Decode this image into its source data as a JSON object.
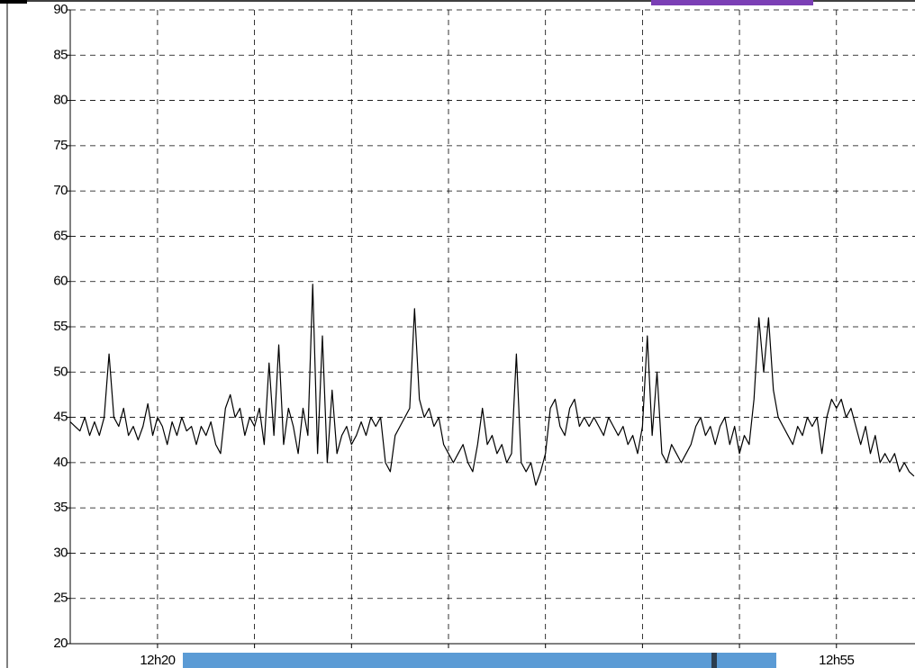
{
  "chart_data": {
    "type": "line",
    "x": [
      15.5,
      15.75,
      16,
      16.25,
      16.5,
      16.75,
      17,
      17.25,
      17.5,
      17.75,
      18,
      18.25,
      18.5,
      18.75,
      19,
      19.25,
      19.5,
      19.75,
      20,
      20.25,
      20.5,
      20.75,
      21,
      21.25,
      21.5,
      21.75,
      22,
      22.25,
      22.5,
      22.75,
      23,
      23.25,
      23.5,
      23.75,
      24,
      24.25,
      24.5,
      24.75,
      25,
      25.25,
      25.5,
      25.75,
      26,
      26.25,
      26.5,
      26.75,
      27,
      27.25,
      27.5,
      27.75,
      28,
      28.25,
      28.5,
      28.75,
      29,
      29.25,
      29.5,
      29.75,
      30,
      30.25,
      30.5,
      30.75,
      31,
      31.25,
      31.5,
      31.75,
      32,
      32.25,
      32.5,
      32.75,
      33,
      33.25,
      33.5,
      33.75,
      34,
      34.25,
      34.5,
      34.75,
      35,
      35.25,
      35.5,
      35.75,
      36,
      36.25,
      36.5,
      36.75,
      37,
      37.25,
      37.5,
      37.75,
      38,
      38.25,
      38.5,
      38.75,
      39,
      39.25,
      39.5,
      39.75,
      40,
      40.25,
      40.5,
      40.75,
      41,
      41.25,
      41.5,
      41.75,
      42,
      42.25,
      42.5,
      42.75,
      43,
      43.25,
      43.5,
      43.75,
      44,
      44.25,
      44.5,
      44.75,
      45,
      45.25,
      45.5,
      45.75,
      46,
      46.25,
      46.5,
      46.75,
      47,
      47.25,
      47.5,
      47.75,
      48,
      48.25,
      48.5,
      48.75,
      49,
      49.25,
      49.5,
      49.75,
      50,
      50.25,
      50.5,
      50.75,
      51,
      51.25,
      51.5,
      51.75,
      52,
      52.25,
      52.5,
      52.75,
      53,
      53.25,
      53.5,
      53.75,
      54,
      54.25,
      54.5,
      54.75,
      55,
      55.25,
      55.5,
      55.75,
      56,
      56.25,
      56.5,
      56.75,
      57,
      57.25,
      57.5,
      57.75,
      58,
      58.25,
      58.5,
      58.75,
      59
    ],
    "series": [
      {
        "color": "#000000",
        "values": [
          44.5,
          44,
          43.5,
          45,
          43,
          44.5,
          43,
          45,
          52,
          45,
          44,
          46,
          43,
          44,
          42.5,
          44,
          46.5,
          43,
          45,
          44,
          42,
          44.5,
          43,
          45,
          43.5,
          44,
          42,
          44,
          43,
          44.5,
          42,
          41,
          46,
          47.5,
          45,
          46,
          43,
          45,
          44,
          46,
          42,
          51,
          43,
          53,
          42,
          46,
          44,
          41,
          46,
          43,
          59.7,
          41,
          54,
          40,
          48,
          41,
          43,
          44,
          42,
          43,
          44.5,
          43,
          45,
          44,
          45,
          40,
          39,
          43,
          44,
          45,
          46,
          57,
          47,
          45,
          46,
          44,
          45,
          42,
          41,
          40,
          41,
          42,
          40,
          39,
          42,
          46,
          42,
          43,
          41,
          42,
          40,
          41,
          52,
          40,
          39,
          40,
          37.5,
          39,
          41,
          46,
          47,
          44,
          43,
          46,
          47,
          44,
          45,
          44,
          45,
          44,
          43,
          45,
          44,
          43,
          44,
          42,
          43,
          41,
          44,
          54,
          43,
          50,
          41,
          40,
          42,
          41,
          40,
          41,
          42,
          44,
          45,
          43,
          44,
          42,
          44,
          45,
          42,
          44,
          41,
          43,
          42,
          47,
          56,
          50,
          56,
          48,
          45,
          44,
          43,
          42,
          44,
          43,
          45,
          44,
          45,
          41,
          45,
          47,
          46,
          47,
          45,
          46,
          44,
          42,
          44,
          41,
          43,
          40,
          41,
          40,
          41,
          39,
          40,
          39,
          38.5
        ]
      }
    ],
    "xlim": [
      15.5,
      59.05
    ],
    "xticks": [
      {
        "value": 20,
        "label": "12h20"
      },
      {
        "value": 25,
        "label": null
      },
      {
        "value": 30,
        "label": null
      },
      {
        "value": 35,
        "label": null
      },
      {
        "value": 40,
        "label": null
      },
      {
        "value": 45,
        "label": null
      },
      {
        "value": 50,
        "label": null
      },
      {
        "value": 55,
        "label": "12h55"
      }
    ],
    "ylim": [
      20,
      90
    ],
    "yticks": [
      20,
      25,
      30,
      35,
      40,
      45,
      50,
      55,
      60,
      65,
      70,
      75,
      80,
      85,
      90
    ],
    "grid": true
  }
}
